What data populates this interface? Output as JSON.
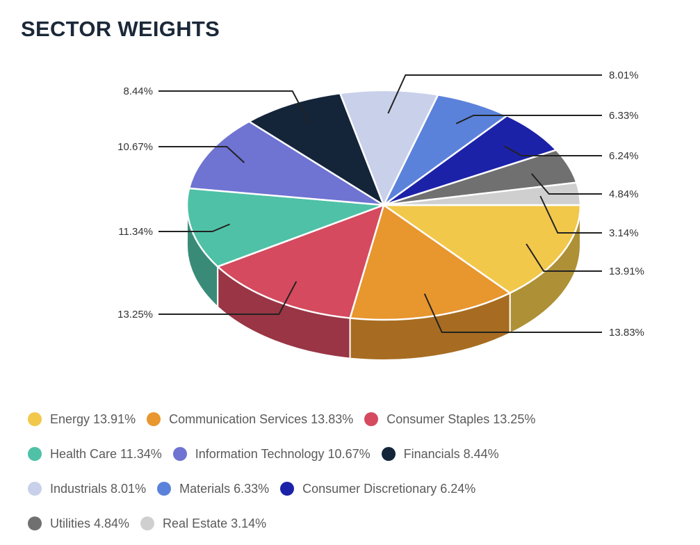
{
  "chart_data": {
    "type": "pie",
    "title": "SECTOR WEIGHTS",
    "style": "3d",
    "legend_position": "bottom",
    "slices": [
      {
        "name": "Energy",
        "value": 13.91,
        "label": "13.91%",
        "color": "#f2c84b"
      },
      {
        "name": "Communication Services",
        "value": 13.83,
        "label": "13.83%",
        "color": "#e8962e"
      },
      {
        "name": "Consumer Staples",
        "value": 13.25,
        "label": "13.25%",
        "color": "#d54a5e"
      },
      {
        "name": "Health Care",
        "value": 11.34,
        "label": "11.34%",
        "color": "#4fc1a6"
      },
      {
        "name": "Information Technology",
        "value": 10.67,
        "label": "10.67%",
        "color": "#6f73d2"
      },
      {
        "name": "Financials",
        "value": 8.44,
        "label": "8.44%",
        "color": "#14253a"
      },
      {
        "name": "Industrials",
        "value": 8.01,
        "label": "8.01%",
        "color": "#c9d0ea"
      },
      {
        "name": "Materials",
        "value": 6.33,
        "label": "6.33%",
        "color": "#5b82db"
      },
      {
        "name": "Consumer Discretionary",
        "value": 6.24,
        "label": "6.24%",
        "color": "#1c22a8"
      },
      {
        "name": "Utilities",
        "value": 4.84,
        "label": "4.84%",
        "color": "#707070"
      },
      {
        "name": "Real Estate",
        "value": 3.14,
        "label": "3.14%",
        "color": "#cfcfcf"
      }
    ],
    "legend": [
      "Energy 13.91%",
      "Communication Services 13.83%",
      "Consumer Staples 13.25%",
      "Health Care 11.34%",
      "Information Technology 10.67%",
      "Financials 8.44%",
      "Industrials 8.01%",
      "Materials 6.33%",
      "Consumer Discretionary 6.24%",
      "Utilities 4.84%",
      "Real Estate 3.14%"
    ]
  }
}
